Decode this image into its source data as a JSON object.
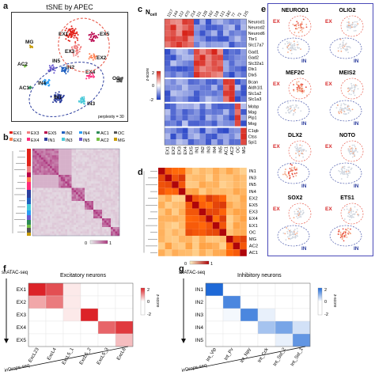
{
  "panel_a": {
    "letter": "a",
    "title": "tSNE by APEC",
    "perplexity_note": "perplexity = 30",
    "cluster_labels": [
      "EX1",
      "EX5",
      "EX3",
      "EX2",
      "MG",
      "AC2",
      "IN5",
      "EX4",
      "OC",
      "IN4",
      "IN2",
      "AC1",
      "IN1",
      "IN3"
    ]
  },
  "panel_b": {
    "letter": "b",
    "legend": [
      "EX1",
      "EX3",
      "EX5",
      "IN2",
      "IN4",
      "AC1",
      "OC",
      "EX2",
      "EX4",
      "IN1",
      "IN3",
      "IN5",
      "AC2",
      "MG"
    ],
    "legend_colors": {
      "EX1": "#e2231a",
      "EX3": "#f08080",
      "EX5": "#b8004a",
      "IN2": "#1f5fbf",
      "IN4": "#2a9df4",
      "AC1": "#2e8b57",
      "OC": "#555555",
      "EX2": "#ff7f50",
      "EX4": "#ff2d7a",
      "IN1": "#2c3e9e",
      "IN3": "#46c8d8",
      "IN5": "#6a5acd",
      "AC2": "#76c043",
      "MG": "#c79a00"
    },
    "scale_ticks": [
      "0",
      "1"
    ]
  },
  "panel_c": {
    "letter": "c",
    "ncell_label": "N",
    "ncell_sub": "cell",
    "counts": [
      "1117",
      "144",
      "112",
      "470",
      "214",
      "111",
      "128",
      "162",
      "118",
      "121",
      "182",
      "77",
      "73",
      "125"
    ],
    "columns": [
      "EX1",
      "EX2",
      "EX3",
      "EX4",
      "EX5",
      "IN1",
      "IN2",
      "IN3",
      "IN4",
      "IN5",
      "AC1",
      "AC2",
      "OC",
      "MG"
    ],
    "genes": [
      "Neurod1",
      "Neurod2",
      "Neurod6",
      "Tbr1",
      "Slc17a7",
      "Gad1",
      "Gad2",
      "Slc32a1",
      "Dlx1",
      "Dlx5",
      "Bcan",
      "Aldh1l1",
      "Slc1a2",
      "Slc1a3",
      "Mobp",
      "Mag",
      "Plp1",
      "Mog",
      "C1qb",
      "Ctss",
      "Spi1"
    ],
    "scale_label": "z-score",
    "scale_ticks": [
      "2",
      "0",
      "-2"
    ]
  },
  "panel_d": {
    "letter": "d",
    "rows": [
      "IN1",
      "IN3",
      "IN5",
      "IN4",
      "EX2",
      "EX5",
      "EX3",
      "EX4",
      "EX1",
      "OC",
      "MG",
      "AC2",
      "AC1"
    ],
    "scale_ticks": [
      "0",
      "1"
    ]
  },
  "panel_e": {
    "letter": "e",
    "genes": [
      "NEUROD1",
      "OLIG2",
      "MEF2C",
      "MEIS2",
      "DLX2",
      "NOTO",
      "SOX2",
      "ETS1"
    ],
    "ex_label": "EX",
    "in_label": "IN"
  },
  "panel_f": {
    "letter": "f",
    "assay": "snATAC-seq",
    "title": "Excitatory neurons",
    "rows": [
      "EX1",
      "EX2",
      "EX3",
      "EX4",
      "EX5"
    ],
    "columns": [
      "ExcL23",
      "ExcL4",
      "ExcL5_1",
      "ExcL5_2",
      "ExcL5_3",
      "ExcL6"
    ],
    "xaxis": "inDrops-seq",
    "scale_label": "z-score",
    "scale_ticks": [
      "2",
      "0",
      "-2"
    ],
    "matrix": [
      [
        2.0,
        1.6,
        0.2,
        -0.6,
        -1.0,
        -1.1
      ],
      [
        0.8,
        1.2,
        0.2,
        -0.4,
        -0.8,
        -1.0
      ],
      [
        -0.5,
        -0.4,
        0.2,
        2.0,
        0.0,
        -0.9
      ],
      [
        -0.9,
        -0.8,
        -0.7,
        -0.3,
        1.4,
        1.8
      ],
      [
        -0.9,
        -0.8,
        -0.6,
        -0.2,
        -0.1,
        0.6
      ]
    ]
  },
  "panel_g": {
    "letter": "g",
    "assay": "snATAC-seq",
    "title": "Inhibitory neurons",
    "rows": [
      "IN1",
      "IN2",
      "IN3",
      "IN4",
      "IN5"
    ],
    "columns": [
      "Int_Vip",
      "Int_Pv",
      "Int_Npy",
      "Int_Cck",
      "Int_Sst_2",
      "Int_Sst_1"
    ],
    "xaxis": "inDrops-seq",
    "scale_label": "z-score",
    "scale_ticks": [
      "2",
      "0",
      "-2"
    ],
    "matrix": [
      [
        2.0,
        -0.3,
        -0.4,
        -0.2,
        -0.6,
        -0.6
      ],
      [
        -0.4,
        1.6,
        -0.2,
        -0.4,
        -0.5,
        -0.4
      ],
      [
        -0.5,
        0.1,
        1.6,
        0.2,
        -0.6,
        -0.4
      ],
      [
        -0.5,
        -0.5,
        -0.3,
        0.8,
        1.2,
        0.4
      ],
      [
        -0.6,
        -0.6,
        -0.5,
        -0.1,
        0.2,
        1.4
      ]
    ]
  }
}
